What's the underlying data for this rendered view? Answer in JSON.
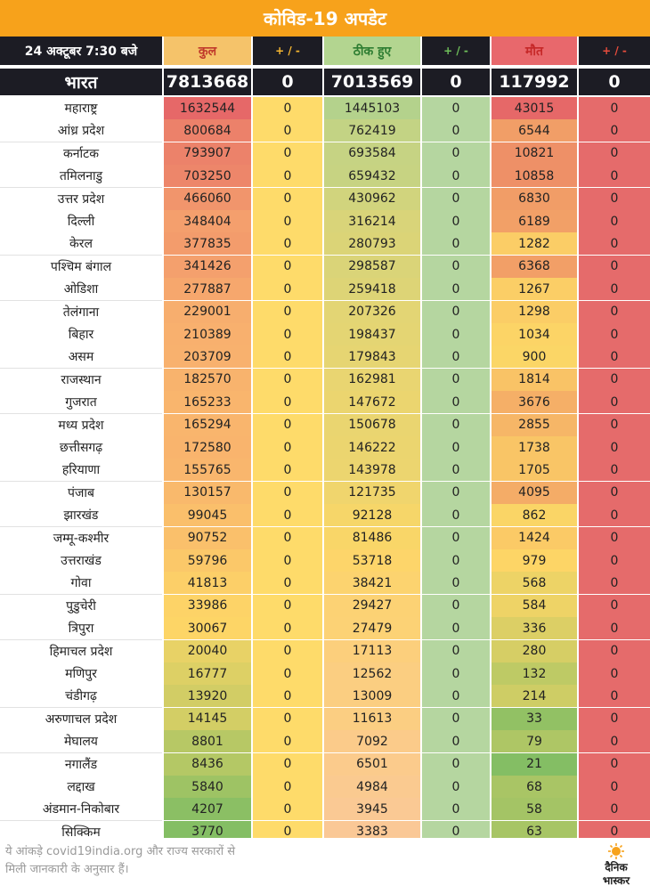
{
  "title": "कोविड-19 अपडेट",
  "header": {
    "date": "24 अक्टूबर 7:30 बजे",
    "total_label": "कुल",
    "total_change": "+ / -",
    "recovered_label": "ठीक हुए",
    "recovered_change": "+ / -",
    "deaths_label": "मौत",
    "deaths_change": "+ / -"
  },
  "colors": {
    "title_bar": "#f7a21b",
    "national_bg": "#1c1c24",
    "header_total": "#f5c36a",
    "header_recovered": "#b3d590",
    "header_deaths": "#e8686c",
    "total_change_col": "#fedb6a",
    "recovered_change_col": "#b5d6a0",
    "deaths_change_col": "#e56b6b"
  },
  "national": {
    "name": "भारत",
    "total": "7813668",
    "total_change": "0",
    "recovered": "7013569",
    "recovered_change": "0",
    "deaths": "117992",
    "deaths_change": "0"
  },
  "states": [
    {
      "name": "महाराष्ट्र",
      "total": "1632544",
      "total_change": "0",
      "recovered": "1445103",
      "recovered_change": "0",
      "deaths": "43015",
      "deaths_change": "0"
    },
    {
      "name": "आंध्र प्रदेश",
      "total": "800684",
      "total_change": "0",
      "recovered": "762419",
      "recovered_change": "0",
      "deaths": "6544",
      "deaths_change": "0"
    },
    {
      "name": "कर्नाटक",
      "total": "793907",
      "total_change": "0",
      "recovered": "693584",
      "recovered_change": "0",
      "deaths": "10821",
      "deaths_change": "0"
    },
    {
      "name": "तमिलनाडु",
      "total": "703250",
      "total_change": "0",
      "recovered": "659432",
      "recovered_change": "0",
      "deaths": "10858",
      "deaths_change": "0"
    },
    {
      "name": "उत्तर प्रदेश",
      "total": "466060",
      "total_change": "0",
      "recovered": "430962",
      "recovered_change": "0",
      "deaths": "6830",
      "deaths_change": "0"
    },
    {
      "name": "दिल्ली",
      "total": "348404",
      "total_change": "0",
      "recovered": "316214",
      "recovered_change": "0",
      "deaths": "6189",
      "deaths_change": "0"
    },
    {
      "name": "केरल",
      "total": "377835",
      "total_change": "0",
      "recovered": "280793",
      "recovered_change": "0",
      "deaths": "1282",
      "deaths_change": "0"
    },
    {
      "name": "पश्चिम बंगाल",
      "total": "341426",
      "total_change": "0",
      "recovered": "298587",
      "recovered_change": "0",
      "deaths": "6368",
      "deaths_change": "0"
    },
    {
      "name": "ओडिशा",
      "total": "277887",
      "total_change": "0",
      "recovered": "259418",
      "recovered_change": "0",
      "deaths": "1267",
      "deaths_change": "0"
    },
    {
      "name": "तेलंगाना",
      "total": "229001",
      "total_change": "0",
      "recovered": "207326",
      "recovered_change": "0",
      "deaths": "1298",
      "deaths_change": "0"
    },
    {
      "name": "बिहार",
      "total": "210389",
      "total_change": "0",
      "recovered": "198437",
      "recovered_change": "0",
      "deaths": "1034",
      "deaths_change": "0"
    },
    {
      "name": "असम",
      "total": "203709",
      "total_change": "0",
      "recovered": "179843",
      "recovered_change": "0",
      "deaths": "900",
      "deaths_change": "0"
    },
    {
      "name": "राजस्थान",
      "total": "182570",
      "total_change": "0",
      "recovered": "162981",
      "recovered_change": "0",
      "deaths": "1814",
      "deaths_change": "0"
    },
    {
      "name": "गुजरात",
      "total": "165233",
      "total_change": "0",
      "recovered": "147672",
      "recovered_change": "0",
      "deaths": "3676",
      "deaths_change": "0"
    },
    {
      "name": "मध्य प्रदेश",
      "total": "165294",
      "total_change": "0",
      "recovered": "150678",
      "recovered_change": "0",
      "deaths": "2855",
      "deaths_change": "0"
    },
    {
      "name": "छत्तीसगढ़",
      "total": "172580",
      "total_change": "0",
      "recovered": "146222",
      "recovered_change": "0",
      "deaths": "1738",
      "deaths_change": "0"
    },
    {
      "name": "हरियाणा",
      "total": "155765",
      "total_change": "0",
      "recovered": "143978",
      "recovered_change": "0",
      "deaths": "1705",
      "deaths_change": "0"
    },
    {
      "name": "पंजाब",
      "total": "130157",
      "total_change": "0",
      "recovered": "121735",
      "recovered_change": "0",
      "deaths": "4095",
      "deaths_change": "0"
    },
    {
      "name": "झारखंड",
      "total": "99045",
      "total_change": "0",
      "recovered": "92128",
      "recovered_change": "0",
      "deaths": "862",
      "deaths_change": "0"
    },
    {
      "name": "जम्मू-कश्मीर",
      "total": "90752",
      "total_change": "0",
      "recovered": "81486",
      "recovered_change": "0",
      "deaths": "1424",
      "deaths_change": "0"
    },
    {
      "name": "उत्तराखंड",
      "total": "59796",
      "total_change": "0",
      "recovered": "53718",
      "recovered_change": "0",
      "deaths": "979",
      "deaths_change": "0"
    },
    {
      "name": "गोवा",
      "total": "41813",
      "total_change": "0",
      "recovered": "38421",
      "recovered_change": "0",
      "deaths": "568",
      "deaths_change": "0"
    },
    {
      "name": "पुडुचेरी",
      "total": "33986",
      "total_change": "0",
      "recovered": "29427",
      "recovered_change": "0",
      "deaths": "584",
      "deaths_change": "0"
    },
    {
      "name": "त्रिपुरा",
      "total": "30067",
      "total_change": "0",
      "recovered": "27479",
      "recovered_change": "0",
      "deaths": "336",
      "deaths_change": "0"
    },
    {
      "name": "हिमाचल प्रदेश",
      "total": "20040",
      "total_change": "0",
      "recovered": "17113",
      "recovered_change": "0",
      "deaths": "280",
      "deaths_change": "0"
    },
    {
      "name": "मणिपुर",
      "total": "16777",
      "total_change": "0",
      "recovered": "12562",
      "recovered_change": "0",
      "deaths": "132",
      "deaths_change": "0"
    },
    {
      "name": "चंडीगढ़",
      "total": "13920",
      "total_change": "0",
      "recovered": "13009",
      "recovered_change": "0",
      "deaths": "214",
      "deaths_change": "0"
    },
    {
      "name": "अरुणाचल प्रदेश",
      "total": "14145",
      "total_change": "0",
      "recovered": "11613",
      "recovered_change": "0",
      "deaths": "33",
      "deaths_change": "0"
    },
    {
      "name": "मेघालय",
      "total": "8801",
      "total_change": "0",
      "recovered": "7092",
      "recovered_change": "0",
      "deaths": "79",
      "deaths_change": "0"
    },
    {
      "name": "नगालैंड",
      "total": "8436",
      "total_change": "0",
      "recovered": "6501",
      "recovered_change": "0",
      "deaths": "21",
      "deaths_change": "0"
    },
    {
      "name": "लद्दाख",
      "total": "5840",
      "total_change": "0",
      "recovered": "4984",
      "recovered_change": "0",
      "deaths": "68",
      "deaths_change": "0"
    },
    {
      "name": "अंडमान-निकोबार",
      "total": "4207",
      "total_change": "0",
      "recovered": "3945",
      "recovered_change": "0",
      "deaths": "58",
      "deaths_change": "0"
    },
    {
      "name": "सिक्किम",
      "total": "3770",
      "total_change": "0",
      "recovered": "3383",
      "recovered_change": "0",
      "deaths": "63",
      "deaths_change": "0"
    }
  ],
  "footer": {
    "note_line1": "ये आंकड़े covid19india.org और राज्य सरकारों से",
    "note_line2": "मिली जानकारी के अनुसार हैं।",
    "logo_line1": "दैनिक",
    "logo_line2": "भास्कर"
  }
}
